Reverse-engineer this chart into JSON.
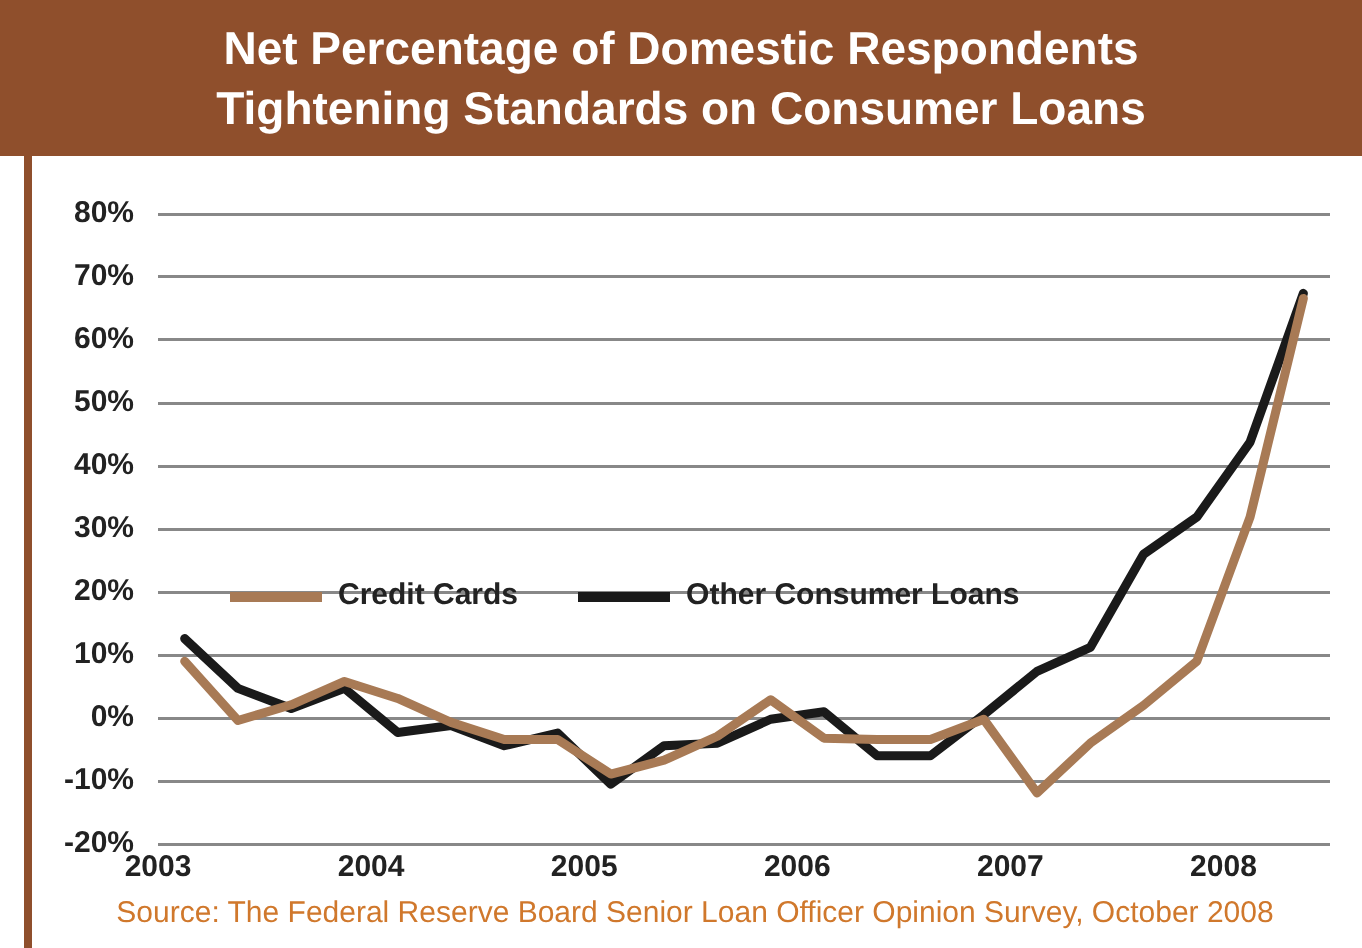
{
  "chart_data": {
    "type": "line",
    "title": "Net Percentage of Domestic Respondents Tightening Standards on Consumer Loans",
    "x": [
      2003.125,
      2003.375,
      2003.625,
      2003.875,
      2004.125,
      2004.375,
      2004.625,
      2004.875,
      2005.125,
      2005.375,
      2005.625,
      2005.875,
      2006.125,
      2006.375,
      2006.625,
      2006.875,
      2007.125,
      2007.375,
      2007.625,
      2007.875,
      2008.125,
      2008.375
    ],
    "series": [
      {
        "name": "Credit Cards",
        "color": "#a87a55",
        "values": [
          9,
          -0.4,
          2.1,
          5.8,
          3.1,
          -0.7,
          -3.4,
          -3.4,
          -8.9,
          -6.7,
          -2.9,
          2.9,
          -3.2,
          -3.4,
          -3.4,
          -0.2,
          -11.9,
          -4,
          2,
          9,
          31.9,
          66.6
        ]
      },
      {
        "name": "Other Consumer Loans",
        "color": "#1a1a1a",
        "values": [
          12.6,
          4.7,
          1.5,
          4.7,
          -2.3,
          -1.2,
          -4.4,
          -2.4,
          -10.5,
          -4.4,
          -4,
          -0.2,
          1,
          -6,
          -6,
          0.5,
          7.4,
          11.2,
          26,
          31.9,
          43.8,
          67.4
        ]
      }
    ],
    "xlim": [
      2003,
      2008.5
    ],
    "xticks": [
      2003,
      2004,
      2005,
      2006,
      2007,
      2008
    ],
    "ylim": [
      -20,
      80
    ],
    "yticks": [
      {
        "value": -20,
        "label": "-20%"
      },
      {
        "value": -10,
        "label": "-10%"
      },
      {
        "value": 0,
        "label": "0%"
      },
      {
        "value": 10,
        "label": "10%"
      },
      {
        "value": 20,
        "label": "20%"
      },
      {
        "value": 30,
        "label": "30%"
      },
      {
        "value": 40,
        "label": "40%"
      },
      {
        "value": 50,
        "label": "50%"
      },
      {
        "value": 60,
        "label": "60%"
      },
      {
        "value": 70,
        "label": "70%"
      },
      {
        "value": 80,
        "label": "80%"
      }
    ],
    "grid": "y",
    "legend": "center",
    "marker": "none",
    "line_style": "solid",
    "annotations": [
      "Source: The Federal Reserve Board Senior Loan Officer Opinion Survey, October 2008"
    ]
  }
}
